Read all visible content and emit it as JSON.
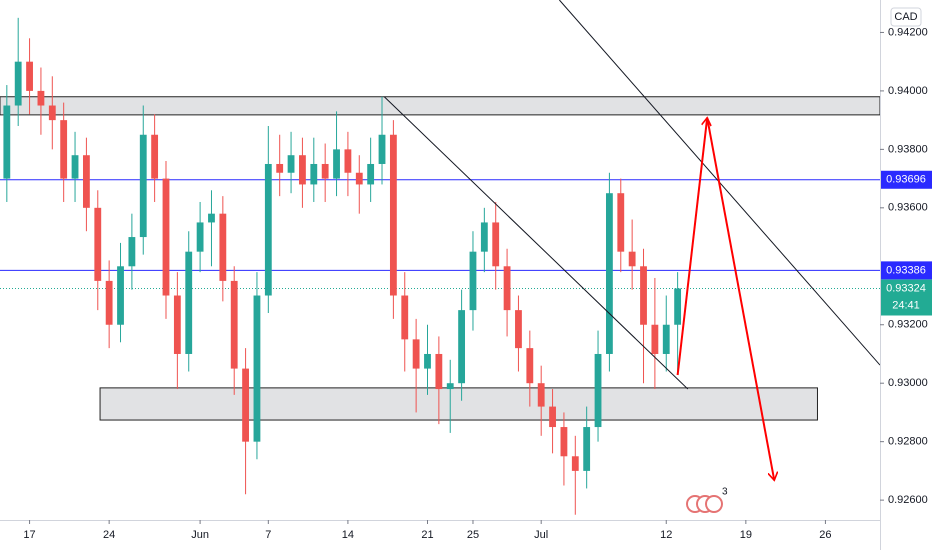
{
  "chart_data": {
    "type": "candlestick",
    "currency": "CAD",
    "xlim": [
      -2.6,
      74.8
    ],
    "ylim": [
      0.92532,
      0.94311
    ],
    "xticks": [
      {
        "value": 0,
        "label": "17"
      },
      {
        "value": 7,
        "label": "24"
      },
      {
        "value": 15,
        "label": "Jun"
      },
      {
        "value": 21,
        "label": "7"
      },
      {
        "value": 28,
        "label": "14"
      },
      {
        "value": 35,
        "label": "21"
      },
      {
        "value": 39,
        "label": "25"
      },
      {
        "value": 45,
        "label": "Jul"
      },
      {
        "value": 56,
        "label": "12"
      },
      {
        "value": 63,
        "label": "19"
      },
      {
        "value": 70,
        "label": "26"
      }
    ],
    "yticks": [
      {
        "value": 0.942,
        "label": "0.94200"
      },
      {
        "value": 0.94,
        "label": "0.94000"
      },
      {
        "value": 0.938,
        "label": "0.93800"
      },
      {
        "value": 0.936,
        "label": "0.93600"
      },
      {
        "value": 0.932,
        "label": "0.93200"
      },
      {
        "value": 0.93,
        "label": "0.93000"
      },
      {
        "value": 0.928,
        "label": "0.92800"
      },
      {
        "value": 0.926,
        "label": "0.92600"
      }
    ],
    "up_color": "#26a69a",
    "down_color": "#ef5350",
    "candles": {
      "x": [
        -2,
        -1,
        0,
        1,
        2,
        3,
        4,
        5,
        6,
        7,
        8,
        9,
        10,
        11,
        12,
        13,
        14,
        15,
        16,
        17,
        18,
        19,
        20,
        21,
        22,
        23,
        24,
        25,
        26,
        27,
        28,
        29,
        30,
        31,
        32,
        33,
        34,
        35,
        36,
        37,
        38,
        39,
        40,
        41,
        42,
        43,
        44,
        45,
        46,
        47,
        48,
        49,
        50,
        51,
        52,
        53,
        54,
        55,
        56,
        57
      ],
      "open": [
        0.937,
        0.9395,
        0.941,
        0.94,
        0.9395,
        0.939,
        0.937,
        0.9378,
        0.936,
        0.9335,
        0.932,
        0.934,
        0.935,
        0.9385,
        0.937,
        0.933,
        0.931,
        0.9345,
        0.9355,
        0.9358,
        0.9335,
        0.9305,
        0.928,
        0.933,
        0.9375,
        0.9372,
        0.9378,
        0.9368,
        0.9375,
        0.937,
        0.938,
        0.9372,
        0.9368,
        0.9375,
        0.9385,
        0.933,
        0.9315,
        0.9305,
        0.931,
        0.9298,
        0.93,
        0.9325,
        0.9345,
        0.9355,
        0.934,
        0.9325,
        0.9312,
        0.93,
        0.9292,
        0.9285,
        0.9275,
        0.927,
        0.9285,
        0.931,
        0.9365,
        0.9345,
        0.934,
        0.932,
        0.931,
        0.932
      ],
      "high": [
        0.9402,
        0.9425,
        0.9418,
        0.9408,
        0.9405,
        0.9396,
        0.9386,
        0.9384,
        0.9366,
        0.9342,
        0.9348,
        0.9358,
        0.9395,
        0.9392,
        0.9376,
        0.9338,
        0.9352,
        0.9362,
        0.9366,
        0.9364,
        0.934,
        0.9312,
        0.9338,
        0.9388,
        0.9385,
        0.9386,
        0.9384,
        0.9384,
        0.9382,
        0.9393,
        0.9386,
        0.9378,
        0.9384,
        0.9398,
        0.939,
        0.9338,
        0.9322,
        0.932,
        0.9316,
        0.9308,
        0.9332,
        0.9352,
        0.936,
        0.9362,
        0.9346,
        0.933,
        0.9318,
        0.9306,
        0.9298,
        0.929,
        0.9282,
        0.9292,
        0.9318,
        0.9372,
        0.937,
        0.9356,
        0.9346,
        0.9336,
        0.933,
        0.9338
      ],
      "low": [
        0.9362,
        0.9388,
        0.9392,
        0.9385,
        0.938,
        0.9362,
        0.9362,
        0.9352,
        0.9325,
        0.9312,
        0.9314,
        0.9332,
        0.9344,
        0.9362,
        0.9322,
        0.9298,
        0.9304,
        0.9338,
        0.934,
        0.9328,
        0.9296,
        0.9262,
        0.9274,
        0.9324,
        0.9364,
        0.9365,
        0.936,
        0.9362,
        0.9362,
        0.9364,
        0.9364,
        0.9358,
        0.9362,
        0.9368,
        0.9322,
        0.9304,
        0.929,
        0.9296,
        0.9286,
        0.9283,
        0.9294,
        0.9318,
        0.9338,
        0.9332,
        0.9316,
        0.9304,
        0.9292,
        0.9282,
        0.9276,
        0.9265,
        0.9255,
        0.9264,
        0.928,
        0.9304,
        0.9338,
        0.9332,
        0.93,
        0.9298,
        0.9304,
        0.9304
      ],
      "close": [
        0.9395,
        0.941,
        0.94,
        0.9395,
        0.939,
        0.937,
        0.9378,
        0.936,
        0.9335,
        0.932,
        0.934,
        0.935,
        0.9385,
        0.937,
        0.933,
        0.931,
        0.9345,
        0.9355,
        0.9358,
        0.9335,
        0.9305,
        0.928,
        0.933,
        0.9375,
        0.9372,
        0.9378,
        0.9368,
        0.9375,
        0.937,
        0.938,
        0.9372,
        0.9368,
        0.9375,
        0.9385,
        0.933,
        0.9315,
        0.9305,
        0.931,
        0.9298,
        0.93,
        0.9325,
        0.9345,
        0.9355,
        0.934,
        0.9325,
        0.9312,
        0.93,
        0.9292,
        0.9285,
        0.9275,
        0.927,
        0.9285,
        0.931,
        0.9365,
        0.9345,
        0.934,
        0.932,
        0.931,
        0.932,
        0.93324
      ]
    },
    "zones": [
      {
        "x": [
          -2.6,
          74.8
        ],
        "y": [
          0.93918,
          0.9398
        ]
      },
      {
        "x": [
          6.2,
          69.3
        ],
        "y": [
          0.92874,
          0.92984
        ]
      }
    ],
    "levels": [
      {
        "value": 0.93696,
        "color": "#2a2aff"
      },
      {
        "value": 0.93386,
        "color": "#2a2aff"
      }
    ],
    "last_price": {
      "value": 0.93324,
      "countdown": "24:41",
      "color": "#22ab94"
    },
    "trend_lines": [
      {
        "x": [
          46.6,
          74.8
        ],
        "y": [
          0.94311,
          0.93062
        ]
      },
      {
        "x": [
          31.2,
          57.9
        ],
        "y": [
          0.9398,
          0.9298
        ]
      }
    ],
    "arrow": {
      "x": [
        57,
        59.6,
        65.5
      ],
      "y": [
        0.93028,
        0.93908,
        0.92668
      ],
      "color": "#ff0000"
    },
    "events_badge": "3"
  }
}
